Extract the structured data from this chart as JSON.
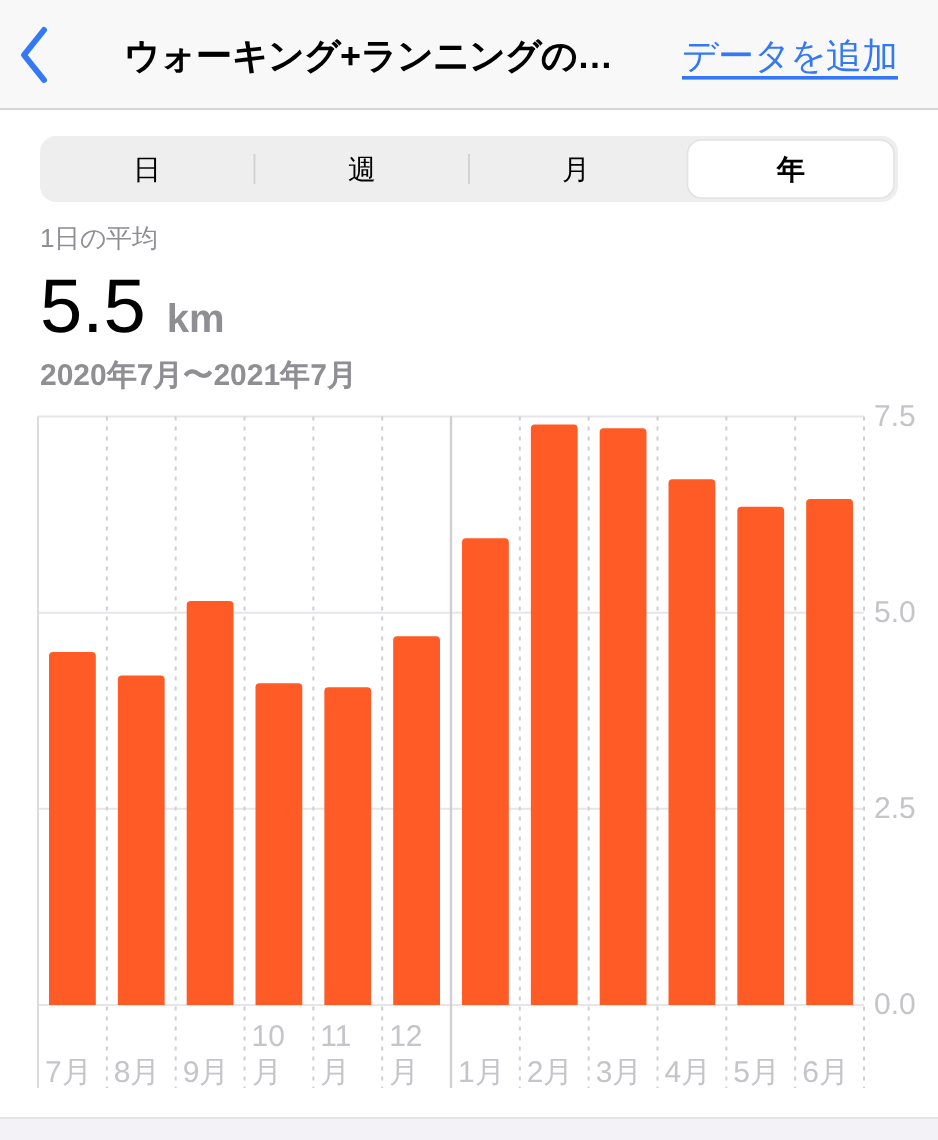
{
  "chart_data": {
    "type": "bar",
    "title": "ウォーキング+ランニングの…",
    "subtitle": "2020年7月〜2021年7月",
    "annotations": [
      "データを追加",
      "日",
      "週",
      "月",
      "年",
      "1日の平均",
      "5.5 km"
    ],
    "categories": [
      "7月",
      "8月",
      "9月",
      "10月",
      "11月",
      "12月",
      "1月",
      "2月",
      "3月",
      "4月",
      "5月",
      "6月"
    ],
    "values": [
      4.5,
      4.2,
      5.15,
      4.1,
      4.05,
      4.7,
      5.95,
      7.4,
      7.35,
      6.7,
      6.35,
      6.45
    ],
    "color": "#fe5b27",
    "ylim": [
      0,
      7.5
    ],
    "yticks": [
      {
        "value": 0,
        "label": "0.0"
      },
      {
        "value": 2.5,
        "label": "2.5"
      },
      {
        "value": 5,
        "label": "5.0"
      },
      {
        "value": 7.5,
        "label": "7.5"
      }
    ],
    "grid": true,
    "ref_lines": [
      {
        "axis": "x",
        "value": "1月",
        "line_style": "solid"
      }
    ]
  }
}
